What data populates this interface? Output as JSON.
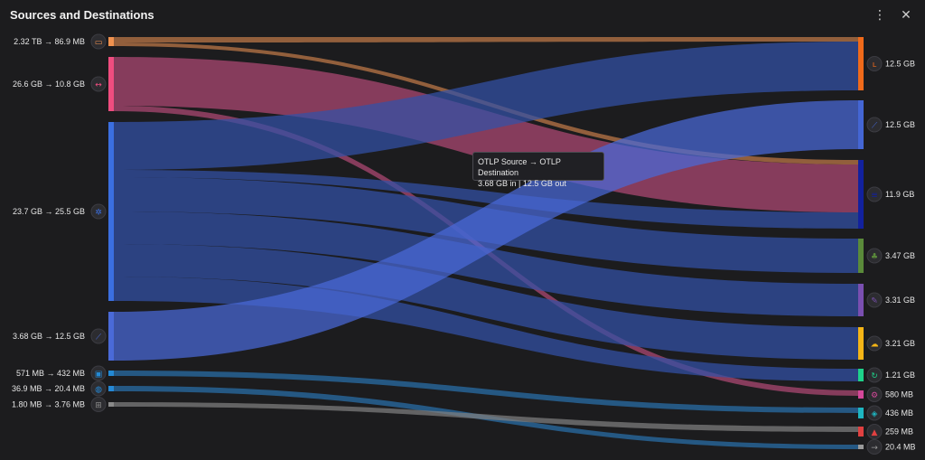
{
  "header": {
    "title": "Sources and Destinations",
    "more_icon": "⋮",
    "close_icon": "✕"
  },
  "tooltip": {
    "line1": "OTLP Source → OTLP Destination",
    "line2": "3.68 GB in | 12.5 GB out"
  },
  "sources": [
    {
      "label": "2.32 TB → 86.9 MB",
      "color": "#f0924f",
      "icon": "terminal-icon"
    },
    {
      "label": "26.6 GB → 10.8 GB",
      "color": "#ef4d7f",
      "icon": "double-arrow-icon"
    },
    {
      "label": "23.7 GB → 25.5 GB",
      "color": "#3b6fe0",
      "icon": "cog-icon"
    },
    {
      "label": "3.68 GB → 12.5 GB",
      "color": "#4a6ad8",
      "icon": "telescope-icon"
    },
    {
      "label": "571 MB → 432 MB",
      "color": "#2389d4",
      "icon": "console-icon"
    },
    {
      "label": "36.9 MB → 20.4 MB",
      "color": "#2589d6",
      "icon": "globe-icon"
    },
    {
      "label": "1.80 MB → 3.76 MB",
      "color": "#8a8a8a",
      "icon": "windows-icon"
    }
  ],
  "destinations": [
    {
      "label": "12.5 GB",
      "color": "#f06a1a",
      "icon": "boot-icon"
    },
    {
      "label": "12.5 GB",
      "color": "#4466d4",
      "icon": "telescope-icon"
    },
    {
      "label": "11.9 GB",
      "color": "#12219e",
      "icon": "splunk-icon"
    },
    {
      "label": "3.47 GB",
      "color": "#5a8a3a",
      "icon": "elephant-icon"
    },
    {
      "label": "3.31 GB",
      "color": "#7a4fb0",
      "icon": "scroll-icon"
    },
    {
      "label": "3.21 GB",
      "color": "#f5b516",
      "icon": "google-cloud-icon"
    },
    {
      "label": "1.21 GB",
      "color": "#1ed28a",
      "icon": "loop-icon"
    },
    {
      "label": "580 MB",
      "color": "#d4489a",
      "icon": "gears-icon"
    },
    {
      "label": "436 MB",
      "color": "#1eb5c0",
      "icon": "stack-icon"
    },
    {
      "label": "259 MB",
      "color": "#e04040",
      "icon": "alert-icon"
    },
    {
      "label": "20.4 MB",
      "color": "#9a9a9a",
      "icon": "arrow-right-icon"
    }
  ],
  "flows": [
    {
      "from": 0,
      "to": 0,
      "color": "#c07a48"
    },
    {
      "from": 0,
      "to": 2,
      "color": "#c07a48"
    },
    {
      "from": 1,
      "to": 2,
      "color": "#b04a74"
    },
    {
      "from": 1,
      "to": 7,
      "color": "#b04a74"
    },
    {
      "from": 2,
      "to": 0,
      "color": "#3352a8"
    },
    {
      "from": 2,
      "to": 2,
      "color": "#3352a8"
    },
    {
      "from": 2,
      "to": 3,
      "color": "#3352a8"
    },
    {
      "from": 2,
      "to": 4,
      "color": "#3352a8"
    },
    {
      "from": 2,
      "to": 5,
      "color": "#3352a8"
    },
    {
      "from": 2,
      "to": 6,
      "color": "#3352a8"
    },
    {
      "from": 3,
      "to": 1,
      "color": "#4a6ad8"
    },
    {
      "from": 4,
      "to": 8,
      "color": "#2a70aa"
    },
    {
      "from": 5,
      "to": 10,
      "color": "#2a70aa"
    },
    {
      "from": 6,
      "to": 9,
      "color": "#808080"
    }
  ]
}
